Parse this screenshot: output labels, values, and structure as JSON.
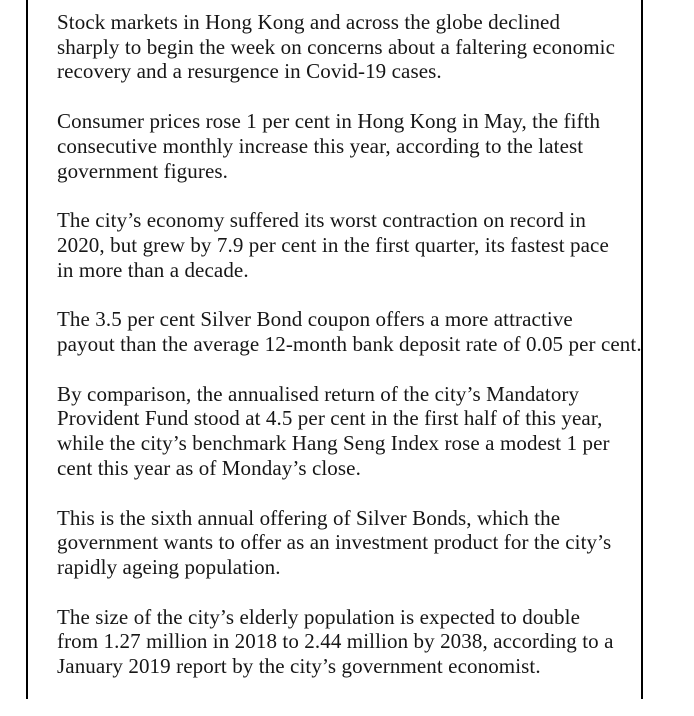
{
  "page": {
    "background_color": "#ffffff",
    "text_color": "#161616",
    "rule_color": "#000000"
  },
  "article": {
    "paragraphs": [
      "Stock markets in Hong Kong and across the globe declined\nsharply to begin the week on concerns about a faltering economic\nrecovery and a resurgence in Covid-19 cases.",
      "Consumer prices rose 1 per cent in Hong Kong in May, the fifth\nconsecutive monthly increase this year, according to the latest\ngovernment figures.",
      "The city’s economy suffered its worst contraction on record in\n2020, but grew by 7.9 per cent in the first quarter, its fastest pace\nin more than a decade.",
      "The 3.5 per cent Silver Bond coupon offers a more attractive\npayout than the average 12-month bank deposit rate of 0.05 per cent.",
      "By comparison, the annualised return of the city’s Mandatory\nProvident Fund stood at 4.5 per cent in the first half of this year,\nwhile the city’s benchmark Hang Seng Index rose a modest 1 per\ncent this year as of Monday’s close.",
      "This is the sixth annual offering of Silver Bonds, which the\ngovernment wants to offer as an investment product for the city’s\nrapidly ageing population.",
      "The size of the city’s elderly population is expected to double\nfrom 1.27 million in 2018 to 2.44 million by 2038, according to a\nJanuary 2019 report by the city’s government economist."
    ]
  }
}
